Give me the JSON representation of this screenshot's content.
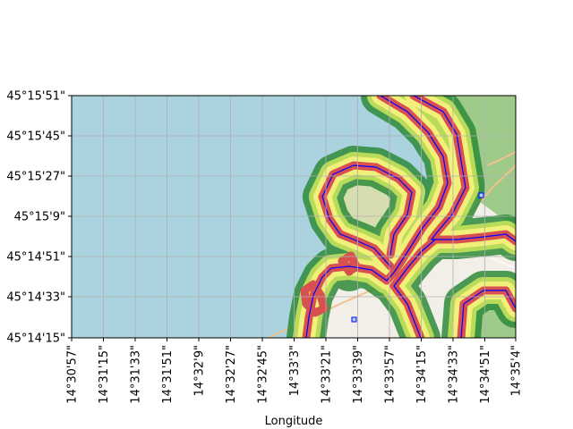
{
  "map": {
    "xlabel": "Longitude",
    "ylabel": "",
    "x_ticks": [
      "14°30'57\"",
      "14°31'15\"",
      "14°31'33\"",
      "14°31'51\"",
      "14°32'9\"",
      "14°32'27\"",
      "14°32'45\"",
      "14°33'3\"",
      "14°33'21\"",
      "14°33'39\"",
      "14°33'57\"",
      "14°34'15\"",
      "14°34'33\"",
      "14°34'51\"",
      "14°35'4\""
    ],
    "y_ticks": [
      "45°15'51\"",
      "45°15'45\"",
      "45°15'27\"",
      "45°15'9\"",
      "45°14'51\"",
      "45°14'33\"",
      "45°14'15\""
    ],
    "grid": true,
    "colors": {
      "sea": "#aad3df",
      "land": "#f2efe9",
      "forest": "#9ecb8a",
      "scrub": "#d6deb0",
      "buffer_outer": "#2e8b3a",
      "buffer_mid": "#b8dc5a",
      "buffer_inner": "#f2f07a",
      "buffer_core": "#d95050",
      "coastline": "#0000ff",
      "grid": "#b0b0b0"
    }
  }
}
